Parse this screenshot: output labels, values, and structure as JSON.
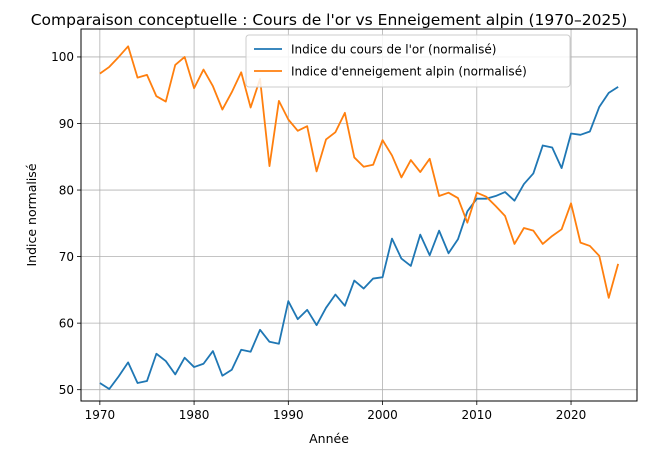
{
  "chart_data": {
    "type": "line",
    "title": "Comparaison conceptuelle : Cours de l'or vs Enneigement alpin (1970–2025)",
    "xlabel": "Année",
    "ylabel": "Indice normalisé",
    "xlim": [
      1968,
      2027
    ],
    "ylim": [
      48.3,
      104.2
    ],
    "xticks": [
      1970,
      1980,
      1990,
      2000,
      2010,
      2020
    ],
    "yticks": [
      50,
      60,
      70,
      80,
      90,
      100
    ],
    "grid": true,
    "legend_position": "top-right",
    "x": [
      1970,
      1971,
      1972,
      1973,
      1974,
      1975,
      1976,
      1977,
      1978,
      1979,
      1980,
      1981,
      1982,
      1983,
      1984,
      1985,
      1986,
      1987,
      1988,
      1989,
      1990,
      1991,
      1992,
      1993,
      1994,
      1995,
      1996,
      1997,
      1998,
      1999,
      2000,
      2001,
      2002,
      2003,
      2004,
      2005,
      2006,
      2007,
      2008,
      2009,
      2010,
      2011,
      2012,
      2013,
      2014,
      2015,
      2016,
      2017,
      2018,
      2019,
      2020,
      2021,
      2022,
      2023,
      2024,
      2025
    ],
    "series": [
      {
        "name": "Indice du cours de l'or (normalisé)",
        "color": "#1f77b4",
        "values": [
          51.0,
          50.1,
          52.0,
          54.1,
          51.0,
          51.3,
          55.4,
          54.3,
          52.3,
          54.8,
          53.4,
          53.9,
          55.8,
          52.1,
          53.0,
          56.0,
          55.7,
          59.0,
          57.2,
          56.9,
          63.3,
          60.6,
          62.0,
          59.7,
          62.3,
          64.3,
          62.6,
          66.4,
          65.2,
          66.7,
          66.9,
          72.7,
          69.7,
          68.6,
          73.3,
          70.2,
          73.9,
          70.5,
          72.6,
          76.8,
          78.7,
          78.7,
          79.1,
          79.7,
          78.4,
          80.9,
          82.5,
          86.7,
          86.4,
          83.3,
          88.5,
          88.3,
          88.8,
          92.5,
          94.6,
          95.5
        ]
      },
      {
        "name": "Indice d'enneigement alpin (normalisé)",
        "color": "#ff7f0e",
        "values": [
          97.5,
          98.5,
          100.0,
          101.6,
          96.9,
          97.3,
          94.1,
          93.3,
          98.8,
          100.0,
          95.3,
          98.1,
          95.6,
          92.1,
          94.7,
          97.7,
          92.4,
          96.7,
          83.6,
          93.4,
          90.6,
          88.9,
          89.6,
          82.8,
          87.6,
          88.7,
          91.6,
          84.9,
          83.5,
          83.8,
          87.5,
          85.2,
          81.9,
          84.5,
          82.7,
          84.7,
          79.1,
          79.6,
          78.8,
          75.1,
          79.6,
          79.0,
          77.6,
          76.1,
          71.9,
          74.3,
          73.9,
          71.9,
          73.1,
          74.1,
          78.0,
          72.1,
          71.6,
          70.1,
          63.8,
          68.9
        ]
      }
    ]
  }
}
